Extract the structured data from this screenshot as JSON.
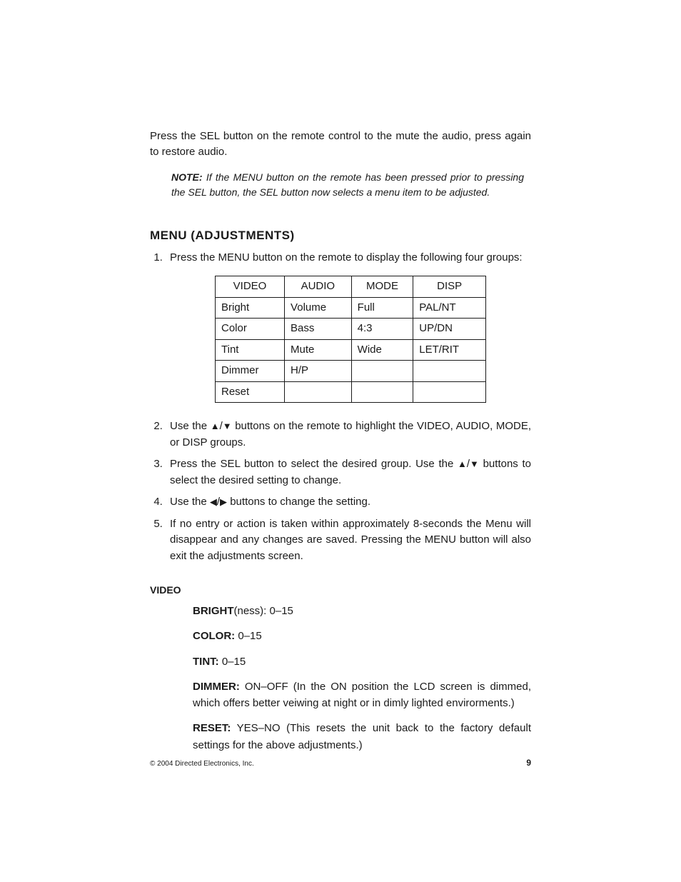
{
  "intro_paragraph": "Press the SEL button on the remote control to the mute the audio, press again to restore audio.",
  "note": {
    "label": "NOTE:",
    "text": "If the MENU button on the remote has been pressed prior to pressing the SEL button, the SEL button now selects a menu item to be adjusted."
  },
  "section_heading": "MENU (ADJUSTMENTS)",
  "step1": "Press the MENU button on the remote to display the following four groups:",
  "table": {
    "headers": [
      "VIDEO",
      "AUDIO",
      "MODE",
      "DISP"
    ],
    "rows": [
      [
        "Bright",
        "Volume",
        "Full",
        "PAL/NT"
      ],
      [
        "Color",
        "Bass",
        "4:3",
        "UP/DN"
      ],
      [
        "Tint",
        "Mute",
        "Wide",
        "LET/RIT"
      ],
      [
        "Dimmer",
        "H/P",
        "",
        ""
      ],
      [
        "Reset",
        "",
        "",
        ""
      ]
    ]
  },
  "glyphs": {
    "up": "▲",
    "down": "▼",
    "left": "◀",
    "right": "▶"
  },
  "step2_a": "Use the ",
  "step2_b": " buttons on the remote to highlight the VIDEO, AUDIO, MODE, or DISP groups.",
  "step3_a": "Press the SEL button to select the desired group. Use the ",
  "step3_b": " buttons to select the desired setting to change.",
  "step4_a": "Use the ",
  "step4_b": " buttons to change the setting.",
  "step5": "If no entry or action is taken within approximately 8-seconds the Menu will disappear and any changes are saved. Pressing the MENU button will also exit the adjustments screen.",
  "subhead": "VIDEO",
  "defs": {
    "bright_label": "BRIGHT",
    "bright_text": "(ness): 0–15",
    "color_label": "COLOR:",
    "color_text": " 0–15",
    "tint_label": "TINT:",
    "tint_text": " 0–15",
    "dimmer_label": "DIMMER:",
    "dimmer_text": " ON–OFF (In the ON position the LCD screen is dimmed, which offers better veiwing at night or in dimly lighted envirorments.)",
    "reset_label": "RESET:",
    "reset_text": " YES–NO (This resets the unit back to the factory default settings for the above adjustments.)"
  },
  "footer": {
    "copyright": "© 2004  Directed Electronics, Inc.",
    "page_number": "9"
  }
}
